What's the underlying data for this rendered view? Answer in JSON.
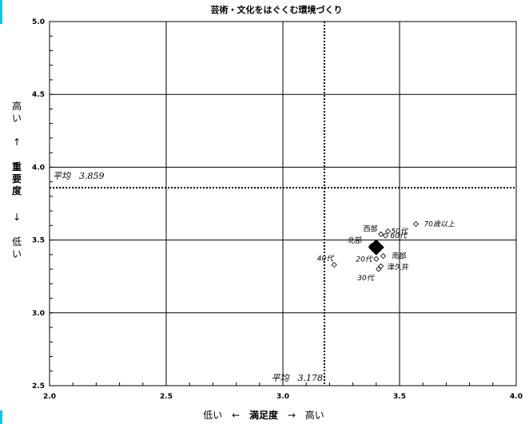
{
  "chart_data": {
    "type": "scatter",
    "title": "芸術・文化をはぐくむ環境づくり",
    "xlabel": {
      "low": "低い",
      "arrow_left": "←",
      "name": "満足度",
      "arrow_right": "→",
      "high": "高い"
    },
    "ylabel": {
      "high": "高い",
      "arrow_up": "↑",
      "name": "重要度",
      "arrow_down": "↓",
      "low": "低い"
    },
    "xlim": [
      2.0,
      4.0
    ],
    "ylim": [
      2.5,
      5.0
    ],
    "xticks": [
      "2.0",
      "2.5",
      "3.0",
      "3.5",
      "4.0"
    ],
    "yticks": [
      "2.5",
      "3.0",
      "3.5",
      "4.0",
      "4.5",
      "5.0"
    ],
    "grid": true,
    "mean_lines": {
      "x": {
        "value": 3.178,
        "label": "平均　3.178"
      },
      "y": {
        "value": 3.859,
        "label": "平均　3.859"
      }
    },
    "overall": {
      "x": 3.4,
      "y": 3.45
    },
    "points": [
      {
        "label": "70歳以上",
        "x": 3.57,
        "y": 3.61
      },
      {
        "label": "西部",
        "x": 3.42,
        "y": 3.54
      },
      {
        "label": "50代",
        "x": 3.45,
        "y": 3.56
      },
      {
        "label": "60代",
        "x": 3.44,
        "y": 3.53
      },
      {
        "label": "北部",
        "x": 3.38,
        "y": 3.46
      },
      {
        "label": "南部",
        "x": 3.43,
        "y": 3.39
      },
      {
        "label": "20代",
        "x": 3.4,
        "y": 3.37
      },
      {
        "label": "津久井",
        "x": 3.42,
        "y": 3.32
      },
      {
        "label": "30代",
        "x": 3.41,
        "y": 3.3
      },
      {
        "label": "40代",
        "x": 3.22,
        "y": 3.33
      }
    ]
  }
}
